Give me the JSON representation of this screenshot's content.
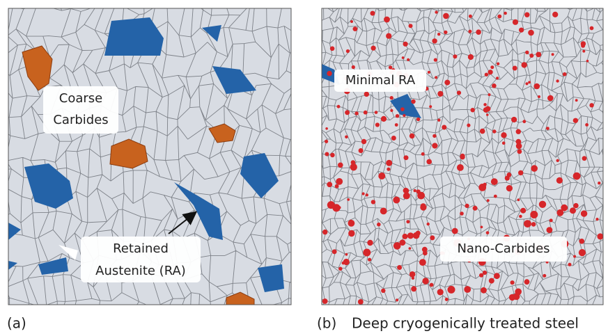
{
  "panel_a": {
    "label": "(a)",
    "annotations": {
      "coarse_carbides": [
        "Coarse",
        "Carbides"
      ],
      "retained_austenite": [
        "Retained",
        "Austenite (RA)"
      ]
    }
  },
  "panel_b": {
    "label": "(b)",
    "caption": "Deep cryogenically treated steel",
    "annotations": {
      "minimal_ra": "Minimal RA",
      "nano_carbides": "Nano-Carbides"
    }
  }
}
